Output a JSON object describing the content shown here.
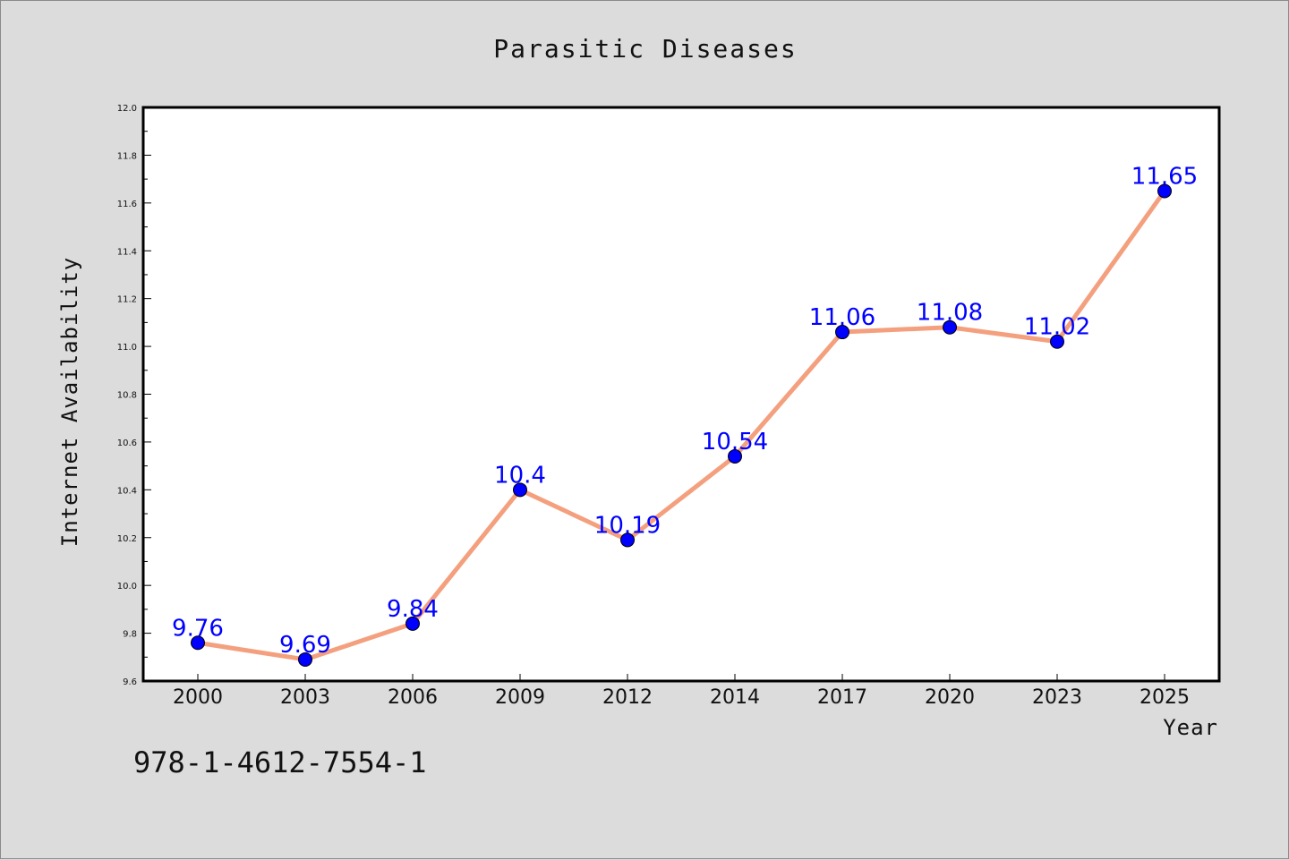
{
  "isbn_text": "978-1-4612-7554-1",
  "chart_data": {
    "type": "line",
    "title": "Parasitic Diseases",
    "xlabel": "Year",
    "ylabel": "Internet Availability",
    "categories": [
      "2000",
      "2003",
      "2006",
      "2009",
      "2012",
      "2014",
      "2017",
      "2020",
      "2023",
      "2025"
    ],
    "series": [
      {
        "values": [
          9.76,
          9.69,
          9.84,
          10.4,
          10.19,
          10.54,
          11.06,
          11.08,
          11.02,
          11.65
        ],
        "data_labels": [
          "9.76",
          "9.69",
          "9.84",
          "10.4",
          "10.19",
          "10.54",
          "11.06",
          "11.08",
          "11.02",
          "11.65"
        ],
        "line_color": "#f4a07e",
        "marker_color": "#0000ff"
      }
    ],
    "ylim": [
      9.6,
      12.0
    ],
    "yticks": [
      "9.6",
      "9.8",
      "10.0",
      "10.2",
      "10.4",
      "10.6",
      "10.8",
      "11.0",
      "11.2",
      "11.4",
      "11.6",
      "11.8",
      "12.0"
    ],
    "grid": false,
    "legend": "none"
  }
}
